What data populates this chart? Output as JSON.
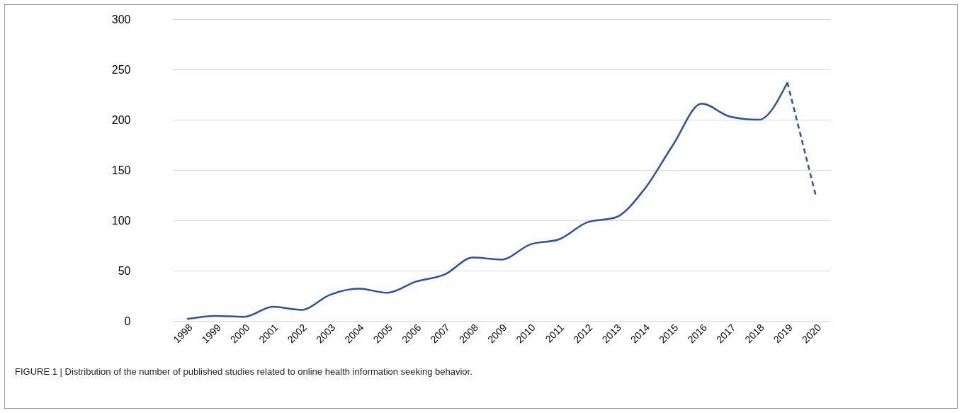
{
  "chart_data": {
    "type": "line",
    "categories": [
      "1998",
      "1999",
      "2000",
      "2001",
      "2002",
      "2003",
      "2004",
      "2005",
      "2006",
      "2007",
      "2008",
      "2009",
      "2010",
      "2011",
      "2012",
      "2013",
      "2014",
      "2015",
      "2016",
      "2017",
      "2018",
      "2019",
      "2020"
    ],
    "series": [
      {
        "color": "#2f529a",
        "line_style": "solid",
        "values": [
          2,
          5,
          4,
          14,
          11,
          26,
          32,
          28,
          39,
          46,
          63,
          61,
          76,
          81,
          98,
          103,
          131,
          175,
          216,
          203,
          200,
          237,
          null
        ]
      },
      {
        "color": "#2f529a",
        "line_style": "dashed",
        "values": [
          null,
          null,
          null,
          null,
          null,
          null,
          null,
          null,
          null,
          null,
          null,
          null,
          null,
          null,
          null,
          null,
          null,
          null,
          null,
          null,
          null,
          237,
          124
        ]
      }
    ],
    "ylim": [
      0,
      300
    ],
    "yticks": [
      0,
      50,
      100,
      150,
      200,
      250,
      300
    ],
    "grid": "y",
    "marker": "none",
    "annotations": [
      "FIGURE 1 | Distribution of the number of published studies related to online health information seeking behavior."
    ]
  }
}
